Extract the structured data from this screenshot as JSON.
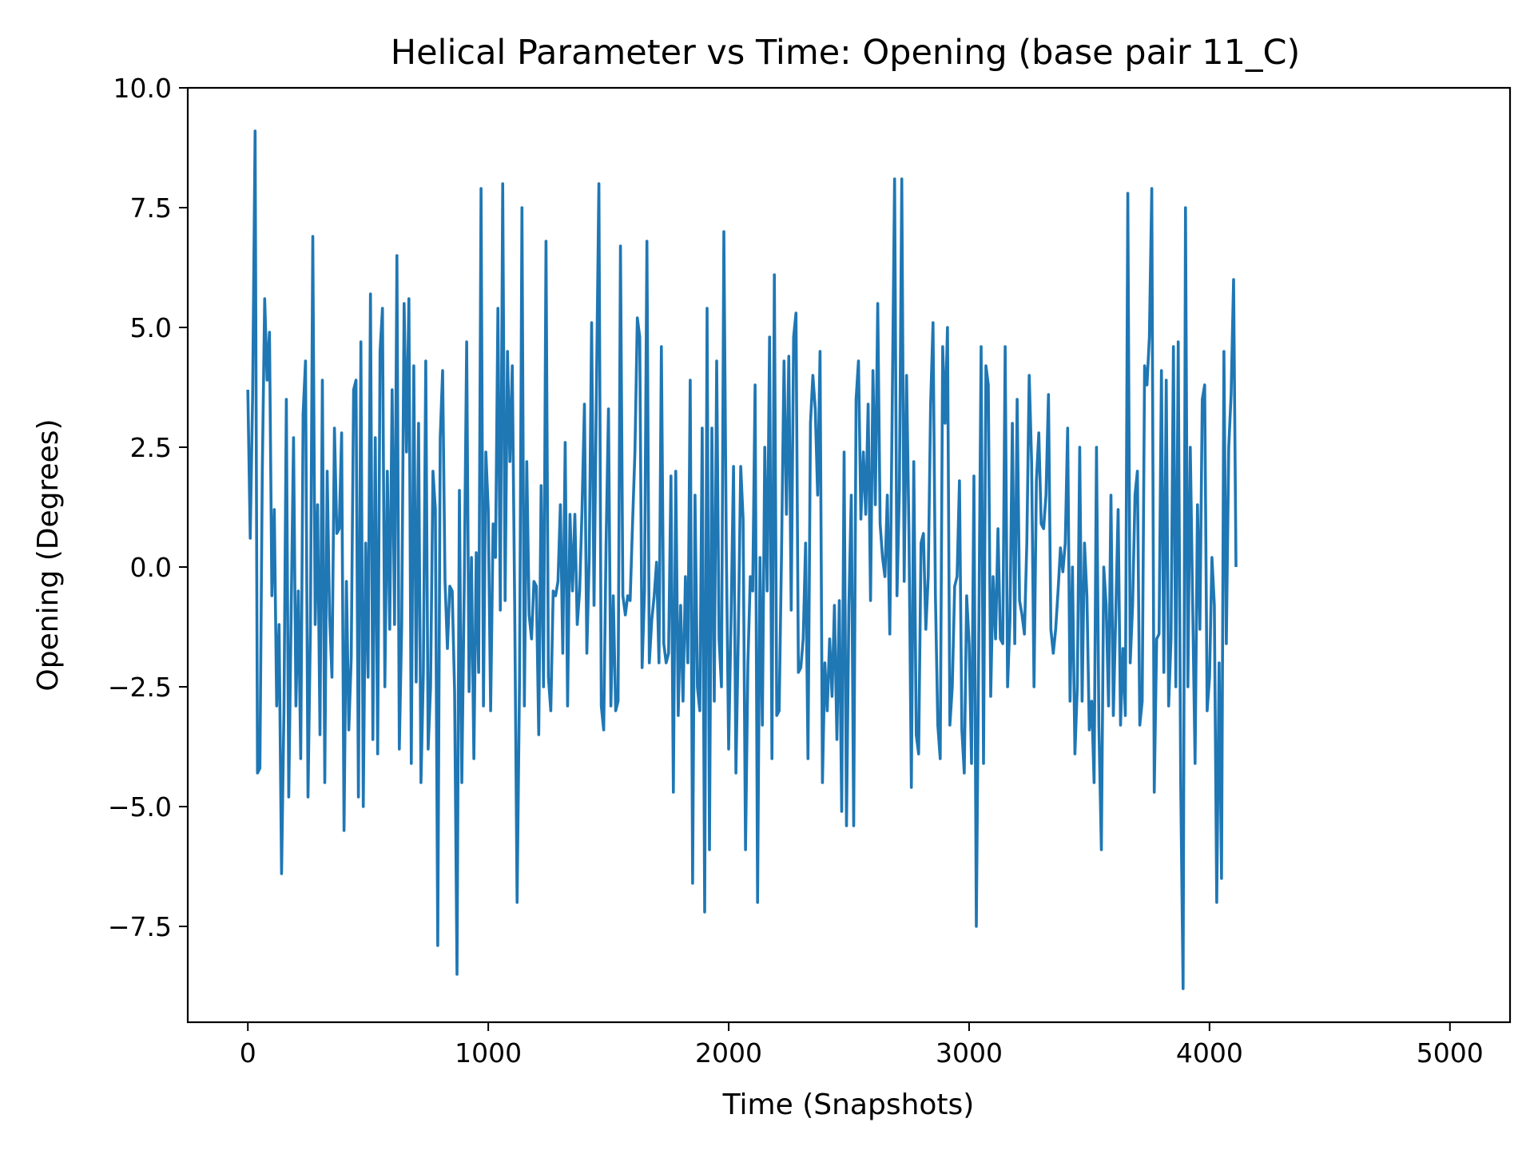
{
  "chart_data": {
    "type": "line",
    "title": "Helical Parameter vs Time: Opening (base pair  11_C)",
    "xlabel": "Time (Snapshots)",
    "ylabel": "Opening (Degrees)",
    "xlim": [
      -250,
      5250
    ],
    "ylim": [
      -9.5,
      10.0
    ],
    "x_ticks": [
      0,
      1000,
      2000,
      3000,
      4000,
      5000
    ],
    "x_tick_labels": [
      "0",
      "1000",
      "2000",
      "3000",
      "4000",
      "5000"
    ],
    "y_ticks": [
      10.0,
      7.5,
      5.0,
      2.5,
      0.0,
      -2.5,
      -5.0,
      -7.5
    ],
    "y_tick_labels": [
      "10.0",
      "7.5",
      "5.0",
      "2.5",
      "0.0",
      "−2.5",
      "−5.0",
      "−7.5"
    ],
    "grid": false,
    "series_color": "#1f77b4",
    "x_step": 10,
    "series": [
      {
        "values": [
          3.7,
          0.6,
          3.6,
          9.1,
          -4.3,
          -4.2,
          2.0,
          5.6,
          3.9,
          4.9,
          -0.6,
          1.2,
          -2.9,
          -1.2,
          -6.4,
          -3.0,
          3.5,
          -4.8,
          -1.0,
          2.7,
          -2.9,
          -0.5,
          -4.0,
          3.2,
          4.3,
          -4.8,
          -1.3,
          6.9,
          -1.2,
          1.3,
          -3.5,
          3.9,
          -4.5,
          2.0,
          -1.0,
          -2.3,
          2.9,
          0.7,
          0.8,
          2.8,
          -5.5,
          -0.3,
          -3.4,
          -1.9,
          3.7,
          3.9,
          -4.8,
          4.7,
          -5.0,
          0.5,
          -2.3,
          5.7,
          -3.6,
          2.7,
          -3.9,
          4.5,
          5.4,
          -2.5,
          2.0,
          -1.3,
          3.7,
          -1.2,
          6.5,
          -3.8,
          -1.2,
          5.5,
          2.4,
          5.6,
          -4.1,
          4.2,
          -2.4,
          3.0,
          -4.5,
          -2.2,
          4.3,
          -3.8,
          -2.5,
          2.0,
          1.2,
          -7.9,
          2.7,
          4.1,
          -0.3,
          -1.7,
          -0.4,
          -0.5,
          -2.6,
          -8.5,
          1.6,
          -4.5,
          -0.5,
          4.7,
          -2.6,
          0.2,
          -4.0,
          0.3,
          -2.2,
          7.9,
          -2.9,
          2.4,
          1.2,
          -3.0,
          0.9,
          0.2,
          5.4,
          -0.9,
          8.0,
          -0.7,
          4.5,
          2.2,
          4.2,
          -0.8,
          -7.0,
          -2.3,
          7.5,
          -2.9,
          2.2,
          -1.0,
          -1.5,
          -0.3,
          -0.4,
          -3.5,
          1.7,
          -2.5,
          6.8,
          -2.3,
          -3.0,
          -0.5,
          -0.6,
          -0.3,
          1.3,
          -1.8,
          2.6,
          -2.9,
          1.1,
          -0.5,
          1.1,
          -1.2,
          -0.5,
          1.2,
          3.4,
          -1.8,
          0.2,
          5.1,
          -0.8,
          3.7,
          8.0,
          -2.9,
          -3.4,
          0.5,
          3.3,
          -2.9,
          -0.6,
          -3.0,
          -2.8,
          6.7,
          -0.6,
          -1.0,
          -0.6,
          -0.7,
          0.9,
          2.4,
          5.2,
          4.8,
          -2.1,
          -0.5,
          6.8,
          -2.0,
          -1.1,
          -0.6,
          0.1,
          -2.0,
          4.6,
          -1.6,
          -2.0,
          -1.8,
          1.9,
          -4.7,
          2.0,
          -3.1,
          -0.8,
          -2.8,
          -0.2,
          -2.0,
          3.9,
          -6.6,
          1.5,
          -2.5,
          -3.0,
          2.9,
          -7.2,
          5.4,
          -5.9,
          2.9,
          -2.8,
          4.3,
          -1.5,
          -2.5,
          7.0,
          0.5,
          -3.8,
          -1.0,
          2.1,
          -4.3,
          -1.4,
          2.1,
          1.0,
          -5.9,
          -2.0,
          -0.2,
          -0.5,
          3.8,
          -7.0,
          0.2,
          -3.3,
          2.5,
          -0.5,
          4.8,
          -4.0,
          6.1,
          -3.1,
          -3.0,
          0.3,
          4.3,
          1.1,
          4.4,
          -0.9,
          4.8,
          5.3,
          -2.2,
          -2.1,
          -1.5,
          0.5,
          -4.0,
          3.0,
          4.0,
          3.3,
          1.5,
          4.5,
          -4.5,
          -2.0,
          -3.0,
          -1.5,
          -2.7,
          -0.8,
          -3.6,
          -0.7,
          -5.1,
          2.4,
          -5.4,
          -0.8,
          1.5,
          -5.4,
          3.5,
          4.3,
          1.0,
          2.4,
          1.1,
          3.4,
          -0.7,
          4.1,
          1.3,
          5.5,
          0.9,
          0.2,
          -0.2,
          1.5,
          -1.4,
          3.3,
          8.1,
          -0.6,
          1.6,
          8.1,
          -0.3,
          4.0,
          0.7,
          -4.6,
          2.2,
          -3.5,
          -3.9,
          0.5,
          0.7,
          -1.3,
          -0.2,
          3.4,
          5.1,
          -0.6,
          -3.3,
          -4.0,
          4.6,
          3.0,
          5.0,
          -3.3,
          -2.5,
          -0.4,
          -0.2,
          1.8,
          -3.4,
          -4.3,
          -0.6,
          -1.6,
          -4.1,
          1.9,
          -7.5,
          -1.6,
          4.6,
          -4.1,
          4.2,
          3.8,
          -2.7,
          -0.2,
          -1.5,
          0.8,
          -1.5,
          -1.6,
          4.6,
          -2.5,
          -1.1,
          3.0,
          -1.6,
          3.5,
          -0.7,
          -1.0,
          -1.4,
          0.5,
          4.0,
          2.2,
          -2.5,
          1.8,
          2.8,
          0.9,
          0.8,
          1.5,
          3.6,
          -1.3,
          -1.8,
          -1.3,
          -0.5,
          0.4,
          -0.1,
          0.5,
          2.9,
          -2.8,
          0.0,
          -3.9,
          -2.5,
          2.5,
          -2.8,
          0.5,
          -0.6,
          -3.4,
          -2.8,
          -4.5,
          2.5,
          -3.3,
          -5.9,
          0.0,
          -0.8,
          -2.9,
          1.5,
          -3.1,
          -1.0,
          1.2,
          -3.3,
          -1.7,
          -3.1,
          7.8,
          -2.0,
          -0.8,
          1.5,
          2.0,
          -3.3,
          -2.8,
          4.2,
          3.8,
          4.8,
          7.9,
          -4.7,
          -1.5,
          -1.4,
          4.1,
          -2.2,
          3.9,
          -2.9,
          -1.5,
          4.6,
          -2.5,
          4.7,
          -4.5,
          -8.8,
          7.5,
          -2.5,
          2.5,
          -0.8,
          -4.1,
          1.3,
          -1.3,
          3.5,
          3.8,
          -3.0,
          -2.3,
          0.2,
          -0.8,
          -7.0,
          -2.0,
          -6.5,
          4.5,
          -1.6,
          2.5,
          3.6,
          6.0,
          0.0
        ]
      }
    ]
  }
}
